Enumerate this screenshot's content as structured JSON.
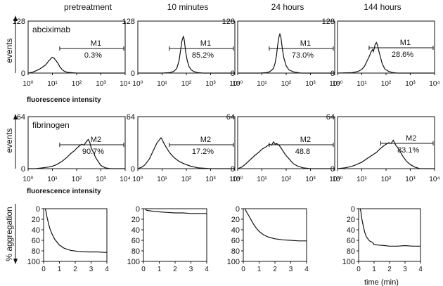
{
  "columns": [
    "pretreatment",
    "10 minutes",
    "24 hours",
    "144 hours"
  ],
  "row_labels": {
    "events": "events",
    "aggregation": "% aggregation",
    "fluorescence": "fluorescence intensity",
    "time": "time (min)"
  },
  "rows_meta": [
    {
      "label": "abciximab",
      "gate": "M1"
    },
    {
      "label": "fibrinogen",
      "gate": "M2"
    }
  ],
  "chart_data": [
    {
      "type": "line",
      "panel": "abciximab binding histograms",
      "label": "abciximab",
      "ylabel": "events",
      "xlabel": "fluorescence intensity",
      "x_scale": "log",
      "xlim": [
        1,
        10000
      ],
      "ylim": [
        0,
        128
      ],
      "y_ticks": [
        "0",
        "128"
      ],
      "x_ticks": [
        "10⁰",
        "10¹",
        "10²",
        "10³",
        "10⁴"
      ],
      "gate": "M1",
      "series": [
        {
          "column": "pretreatment",
          "gate_range": [
            20,
            10000
          ],
          "gate_pct": "0.3%",
          "points": [
            [
              1,
              0
            ],
            [
              1.5,
              2
            ],
            [
              2,
              5
            ],
            [
              3,
              10
            ],
            [
              4,
              15
            ],
            [
              5,
              19
            ],
            [
              6,
              24
            ],
            [
              7,
              30
            ],
            [
              8,
              33
            ],
            [
              9,
              37
            ],
            [
              10,
              39
            ],
            [
              11,
              38
            ],
            [
              12,
              36
            ],
            [
              14,
              31
            ],
            [
              17,
              24
            ],
            [
              20,
              16
            ],
            [
              25,
              9
            ],
            [
              30,
              5
            ],
            [
              40,
              2
            ],
            [
              60,
              1
            ],
            [
              100,
              0
            ],
            [
              10000,
              0
            ]
          ]
        },
        {
          "column": "10 minutes",
          "gate_range": [
            20,
            10000
          ],
          "gate_pct": "85.2%",
          "points": [
            [
              1,
              0
            ],
            [
              10,
              0
            ],
            [
              20,
              1
            ],
            [
              30,
              4
            ],
            [
              40,
              11
            ],
            [
              50,
              30
            ],
            [
              60,
              62
            ],
            [
              65,
              78
            ],
            [
              70,
              85
            ],
            [
              75,
              90
            ],
            [
              80,
              85
            ],
            [
              85,
              74
            ],
            [
              95,
              50
            ],
            [
              110,
              30
            ],
            [
              130,
              16
            ],
            [
              160,
              8
            ],
            [
              200,
              4
            ],
            [
              300,
              1
            ],
            [
              500,
              0
            ],
            [
              10000,
              0
            ]
          ]
        },
        {
          "column": "24 hours",
          "gate_range": [
            20,
            10000
          ],
          "gate_pct": "73.0%",
          "points": [
            [
              1,
              0
            ],
            [
              8,
              0
            ],
            [
              15,
              1
            ],
            [
              20,
              3
            ],
            [
              25,
              7
            ],
            [
              30,
              12
            ],
            [
              35,
              25
            ],
            [
              40,
              45
            ],
            [
              45,
              70
            ],
            [
              50,
              88
            ],
            [
              55,
              96
            ],
            [
              60,
              90
            ],
            [
              65,
              74
            ],
            [
              70,
              58
            ],
            [
              80,
              37
            ],
            [
              100,
              18
            ],
            [
              130,
              8
            ],
            [
              200,
              3
            ],
            [
              400,
              0
            ],
            [
              10000,
              0
            ]
          ]
        },
        {
          "column": "144 hours",
          "gate_range": [
            20,
            10000
          ],
          "gate_pct": "28.6%",
          "points": [
            [
              1,
              0
            ],
            [
              4,
              1
            ],
            [
              7,
              4
            ],
            [
              10,
              9
            ],
            [
              13,
              17
            ],
            [
              16,
              28
            ],
            [
              20,
              40
            ],
            [
              25,
              54
            ],
            [
              28,
              58
            ],
            [
              30,
              53
            ],
            [
              33,
              62
            ],
            [
              36,
              72
            ],
            [
              40,
              75
            ],
            [
              45,
              68
            ],
            [
              50,
              55
            ],
            [
              60,
              38
            ],
            [
              70,
              22
            ],
            [
              90,
              10
            ],
            [
              130,
              4
            ],
            [
              200,
              1
            ],
            [
              300,
              0
            ],
            [
              10000,
              0
            ]
          ]
        }
      ]
    },
    {
      "type": "line",
      "panel": "fibrinogen binding histograms",
      "label": "fibrinogen",
      "ylabel": "events",
      "xlabel": "fluorescence intensity",
      "x_scale": "log",
      "xlim": [
        1,
        10000
      ],
      "ylim": [
        0,
        64
      ],
      "y_ticks": [
        "0",
        "64"
      ],
      "x_ticks": [
        "10⁰",
        "10¹",
        "10²",
        "10³",
        "10⁴"
      ],
      "gate": "M2",
      "series": [
        {
          "column": "pretreatment",
          "gate_range": [
            20,
            10000
          ],
          "gate_pct": "90.7%",
          "points": [
            [
              1,
              0
            ],
            [
              2,
              0
            ],
            [
              4,
              1
            ],
            [
              7,
              2
            ],
            [
              10,
              3
            ],
            [
              15,
              5
            ],
            [
              25,
              9
            ],
            [
              40,
              14
            ],
            [
              60,
              19
            ],
            [
              80,
              22
            ],
            [
              100,
              25
            ],
            [
              130,
              28
            ],
            [
              160,
              30
            ],
            [
              200,
              29
            ],
            [
              250,
              33
            ],
            [
              300,
              36
            ],
            [
              350,
              32
            ],
            [
              400,
              25
            ],
            [
              500,
              20
            ],
            [
              600,
              14
            ],
            [
              800,
              8
            ],
            [
              1000,
              4
            ],
            [
              1500,
              1
            ],
            [
              2500,
              0
            ],
            [
              10000,
              0
            ]
          ]
        },
        {
          "column": "10 minutes",
          "gate_range": [
            20,
            10000
          ],
          "gate_pct": "17.2%",
          "points": [
            [
              1,
              0
            ],
            [
              1.5,
              2
            ],
            [
              2,
              5
            ],
            [
              3,
              12
            ],
            [
              4,
              20
            ],
            [
              5,
              26
            ],
            [
              6,
              31
            ],
            [
              7,
              34
            ],
            [
              8,
              36
            ],
            [
              9,
              38
            ],
            [
              10,
              36
            ],
            [
              12,
              31
            ],
            [
              15,
              26
            ],
            [
              20,
              20
            ],
            [
              30,
              14
            ],
            [
              50,
              9
            ],
            [
              80,
              6
            ],
            [
              150,
              3
            ],
            [
              300,
              1
            ],
            [
              1000,
              0
            ],
            [
              10000,
              0
            ]
          ]
        },
        {
          "column": "24 hours",
          "gate_range": [
            20,
            10000
          ],
          "gate_pct": "48.8",
          "points": [
            [
              1,
              0
            ],
            [
              1.5,
              2
            ],
            [
              2,
              5
            ],
            [
              3,
              10
            ],
            [
              5,
              16
            ],
            [
              8,
              21
            ],
            [
              10,
              24
            ],
            [
              15,
              27
            ],
            [
              20,
              30
            ],
            [
              25,
              29
            ],
            [
              30,
              33
            ],
            [
              35,
              30
            ],
            [
              40,
              31
            ],
            [
              50,
              29
            ],
            [
              60,
              26
            ],
            [
              80,
              20
            ],
            [
              100,
              16
            ],
            [
              150,
              10
            ],
            [
              200,
              6
            ],
            [
              300,
              3
            ],
            [
              500,
              1
            ],
            [
              1000,
              0
            ],
            [
              10000,
              0
            ]
          ]
        },
        {
          "column": "144 hours",
          "gate_range": [
            60,
            10000
          ],
          "gate_pct": "83.1%",
          "points": [
            [
              1,
              0
            ],
            [
              2,
              1
            ],
            [
              3,
              2
            ],
            [
              5,
              4
            ],
            [
              10,
              8
            ],
            [
              20,
              14
            ],
            [
              40,
              20
            ],
            [
              60,
              25
            ],
            [
              80,
              28
            ],
            [
              100,
              30
            ],
            [
              130,
              32
            ],
            [
              160,
              31
            ],
            [
              200,
              35
            ],
            [
              250,
              29
            ],
            [
              300,
              26
            ],
            [
              400,
              20
            ],
            [
              500,
              15
            ],
            [
              700,
              9
            ],
            [
              1000,
              5
            ],
            [
              1500,
              2
            ],
            [
              2500,
              0
            ],
            [
              10000,
              0
            ]
          ]
        }
      ]
    },
    {
      "type": "line",
      "panel": "platelet aggregation traces",
      "ylabel": "% aggregation",
      "xlabel": "time (min)",
      "xlim": [
        0,
        4
      ],
      "ylim": [
        100,
        0
      ],
      "y_ticks": [
        "0",
        "20",
        "40",
        "60",
        "80",
        "100"
      ],
      "x_ticks": [
        "0",
        "1",
        "2",
        "3",
        "4"
      ],
      "series": [
        {
          "column": "pretreatment",
          "points": [
            [
              0.1,
              0
            ],
            [
              0.15,
              5
            ],
            [
              0.2,
              14
            ],
            [
              0.3,
              27
            ],
            [
              0.4,
              38
            ],
            [
              0.5,
              46
            ],
            [
              0.7,
              58
            ],
            [
              1.0,
              69
            ],
            [
              1.3,
              75
            ],
            [
              1.7,
              79
            ],
            [
              2.2,
              81
            ],
            [
              2.8,
              82
            ],
            [
              3.4,
              82
            ],
            [
              4.0,
              83
            ]
          ]
        },
        {
          "column": "10 minutes",
          "points": [
            [
              0.1,
              0
            ],
            [
              0.2,
              3
            ],
            [
              0.4,
              4
            ],
            [
              0.7,
              5
            ],
            [
              1.0,
              6
            ],
            [
              1.5,
              7
            ],
            [
              2.0,
              8
            ],
            [
              2.5,
              8
            ],
            [
              3.0,
              9
            ],
            [
              3.5,
              9
            ],
            [
              4.0,
              9
            ]
          ]
        },
        {
          "column": "24 hours",
          "points": [
            [
              0.1,
              0
            ],
            [
              0.2,
              6
            ],
            [
              0.4,
              16
            ],
            [
              0.6,
              27
            ],
            [
              0.8,
              36
            ],
            [
              1.0,
              43
            ],
            [
              1.3,
              50
            ],
            [
              1.6,
              54
            ],
            [
              2.0,
              57
            ],
            [
              2.5,
              59
            ],
            [
              3.0,
              60
            ],
            [
              3.5,
              61
            ],
            [
              4.0,
              61
            ]
          ]
        },
        {
          "column": "144 hours",
          "points": [
            [
              0.1,
              0
            ],
            [
              0.15,
              6
            ],
            [
              0.2,
              18
            ],
            [
              0.3,
              33
            ],
            [
              0.4,
              45
            ],
            [
              0.5,
              53
            ],
            [
              0.7,
              61
            ],
            [
              0.9,
              64
            ],
            [
              1.0,
              68
            ],
            [
              1.3,
              69
            ],
            [
              1.7,
              70
            ],
            [
              2.0,
              71
            ],
            [
              2.5,
              71
            ],
            [
              3.0,
              70
            ],
            [
              3.5,
              71
            ],
            [
              4.0,
              71
            ]
          ]
        }
      ]
    }
  ]
}
